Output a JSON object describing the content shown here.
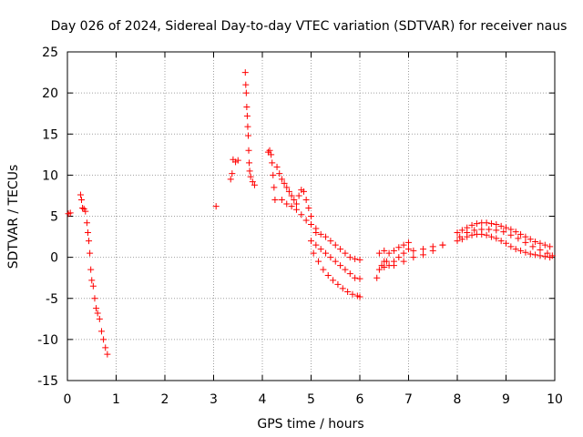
{
  "chart_data": {
    "type": "scatter",
    "title": "Day 026 of 2024, Sidereal Day-to-day VTEC variation (SDTVAR) for receiver naus",
    "xlabel": "GPS time / hours",
    "ylabel": "SDTVAR / TECUs",
    "xlim": [
      0,
      10
    ],
    "ylim": [
      -15,
      25
    ],
    "xticks": [
      0,
      1,
      2,
      3,
      4,
      5,
      6,
      7,
      8,
      9,
      10
    ],
    "yticks": [
      -15,
      -10,
      -5,
      0,
      5,
      10,
      15,
      20,
      25
    ],
    "grid": true,
    "marker": "+",
    "color": "#ff0000",
    "series": [
      {
        "name": "SDTVAR",
        "points": [
          [
            0.02,
            5.3
          ],
          [
            0.06,
            5.4
          ],
          [
            0.27,
            7.6
          ],
          [
            0.29,
            7.0
          ],
          [
            0.31,
            6.0
          ],
          [
            0.34,
            5.9
          ],
          [
            0.37,
            5.6
          ],
          [
            0.4,
            4.2
          ],
          [
            0.42,
            3.0
          ],
          [
            0.44,
            2.0
          ],
          [
            0.46,
            0.5
          ],
          [
            0.48,
            -1.5
          ],
          [
            0.5,
            -2.8
          ],
          [
            0.53,
            -3.5
          ],
          [
            0.56,
            -5.0
          ],
          [
            0.59,
            -6.2
          ],
          [
            0.62,
            -6.8
          ],
          [
            0.66,
            -7.5
          ],
          [
            0.7,
            -9.0
          ],
          [
            0.74,
            -10.0
          ],
          [
            0.78,
            -11.0
          ],
          [
            0.82,
            -11.8
          ],
          [
            3.05,
            6.2
          ],
          [
            3.35,
            9.5
          ],
          [
            3.38,
            10.2
          ],
          [
            3.4,
            11.9
          ],
          [
            3.45,
            11.6
          ],
          [
            3.5,
            11.8
          ],
          [
            3.65,
            22.5
          ],
          [
            3.66,
            21.0
          ],
          [
            3.67,
            20.0
          ],
          [
            3.68,
            18.3
          ],
          [
            3.69,
            17.2
          ],
          [
            3.7,
            15.9
          ],
          [
            3.71,
            14.8
          ],
          [
            3.72,
            13.0
          ],
          [
            3.73,
            11.5
          ],
          [
            3.74,
            10.5
          ],
          [
            3.76,
            9.8
          ],
          [
            3.8,
            9.2
          ],
          [
            3.84,
            8.8
          ],
          [
            4.12,
            12.8
          ],
          [
            4.15,
            13.0
          ],
          [
            4.18,
            12.5
          ],
          [
            4.2,
            11.5
          ],
          [
            4.22,
            10.0
          ],
          [
            4.24,
            8.5
          ],
          [
            4.26,
            7.0
          ],
          [
            4.3,
            11.0
          ],
          [
            4.35,
            10.2
          ],
          [
            4.4,
            9.5
          ],
          [
            4.45,
            9.0
          ],
          [
            4.5,
            8.5
          ],
          [
            4.55,
            8.0
          ],
          [
            4.6,
            7.5
          ],
          [
            4.65,
            7.0
          ],
          [
            4.7,
            6.5
          ],
          [
            4.75,
            7.5
          ],
          [
            4.8,
            8.2
          ],
          [
            4.85,
            8.0
          ],
          [
            4.9,
            7.0
          ],
          [
            4.95,
            6.0
          ],
          [
            5.0,
            5.0
          ],
          [
            4.4,
            7.0
          ],
          [
            4.5,
            6.5
          ],
          [
            4.6,
            6.2
          ],
          [
            4.7,
            5.8
          ],
          [
            4.8,
            5.2
          ],
          [
            4.9,
            4.5
          ],
          [
            5.0,
            4.0
          ],
          [
            5.1,
            3.5
          ],
          [
            5.1,
            3.0
          ],
          [
            5.2,
            2.8
          ],
          [
            5.3,
            2.5
          ],
          [
            5.4,
            2.0
          ],
          [
            5.5,
            1.5
          ],
          [
            5.6,
            1.0
          ],
          [
            5.7,
            0.5
          ],
          [
            5.8,
            0.0
          ],
          [
            5.9,
            -0.2
          ],
          [
            6.0,
            -0.3
          ],
          [
            5.0,
            2.0
          ],
          [
            5.1,
            1.5
          ],
          [
            5.2,
            1.0
          ],
          [
            5.3,
            0.5
          ],
          [
            5.4,
            0.0
          ],
          [
            5.5,
            -0.5
          ],
          [
            5.6,
            -1.0
          ],
          [
            5.7,
            -1.5
          ],
          [
            5.8,
            -2.0
          ],
          [
            5.9,
            -2.5
          ],
          [
            6.0,
            -2.6
          ],
          [
            5.05,
            0.5
          ],
          [
            5.15,
            -0.5
          ],
          [
            5.25,
            -1.5
          ],
          [
            5.35,
            -2.2
          ],
          [
            5.45,
            -2.8
          ],
          [
            5.55,
            -3.3
          ],
          [
            5.65,
            -3.8
          ],
          [
            5.75,
            -4.2
          ],
          [
            5.85,
            -4.5
          ],
          [
            5.95,
            -4.7
          ],
          [
            6.0,
            -4.8
          ],
          [
            6.35,
            -2.5
          ],
          [
            6.4,
            -1.5
          ],
          [
            6.45,
            -1.0
          ],
          [
            6.5,
            -0.5
          ],
          [
            6.55,
            -0.5
          ],
          [
            6.6,
            -1.0
          ],
          [
            6.7,
            -0.5
          ],
          [
            6.8,
            0.0
          ],
          [
            6.9,
            0.5
          ],
          [
            7.0,
            1.0
          ],
          [
            6.4,
            0.5
          ],
          [
            6.5,
            0.8
          ],
          [
            6.6,
            0.5
          ],
          [
            6.7,
            0.8
          ],
          [
            6.8,
            1.2
          ],
          [
            6.9,
            1.5
          ],
          [
            7.0,
            1.8
          ],
          [
            6.5,
            -1.2
          ],
          [
            6.7,
            -1.0
          ],
          [
            6.9,
            -0.5
          ],
          [
            7.1,
            0.0
          ],
          [
            7.3,
            0.3
          ],
          [
            7.5,
            0.8
          ],
          [
            7.7,
            1.5
          ],
          [
            7.1,
            0.8
          ],
          [
            7.3,
            1.0
          ],
          [
            7.5,
            1.3
          ],
          [
            7.7,
            1.5
          ],
          [
            8.0,
            2.0
          ],
          [
            8.1,
            2.2
          ],
          [
            8.2,
            2.5
          ],
          [
            8.3,
            2.7
          ],
          [
            8.4,
            2.8
          ],
          [
            8.5,
            2.8
          ],
          [
            8.6,
            2.7
          ],
          [
            8.7,
            2.5
          ],
          [
            8.8,
            2.3
          ],
          [
            8.9,
            2.0
          ],
          [
            9.0,
            1.7
          ],
          [
            9.1,
            1.3
          ],
          [
            9.2,
            1.0
          ],
          [
            9.3,
            0.8
          ],
          [
            9.4,
            0.6
          ],
          [
            9.5,
            0.4
          ],
          [
            9.6,
            0.3
          ],
          [
            9.7,
            0.2
          ],
          [
            9.8,
            0.1
          ],
          [
            9.9,
            0.0
          ],
          [
            8.0,
            3.0
          ],
          [
            8.1,
            3.3
          ],
          [
            8.2,
            3.6
          ],
          [
            8.3,
            3.9
          ],
          [
            8.4,
            4.1
          ],
          [
            8.5,
            4.2
          ],
          [
            8.6,
            4.2
          ],
          [
            8.7,
            4.1
          ],
          [
            8.8,
            4.0
          ],
          [
            8.9,
            3.8
          ],
          [
            9.0,
            3.6
          ],
          [
            9.1,
            3.4
          ],
          [
            9.2,
            3.1
          ],
          [
            9.3,
            2.8
          ],
          [
            9.4,
            2.5
          ],
          [
            9.5,
            2.2
          ],
          [
            9.6,
            1.9
          ],
          [
            9.7,
            1.7
          ],
          [
            9.8,
            1.5
          ],
          [
            9.9,
            1.3
          ],
          [
            8.05,
            2.5
          ],
          [
            8.2,
            3.0
          ],
          [
            8.35,
            3.3
          ],
          [
            8.5,
            3.4
          ],
          [
            8.65,
            3.4
          ],
          [
            8.8,
            3.3
          ],
          [
            8.95,
            3.1
          ],
          [
            9.1,
            2.7
          ],
          [
            9.25,
            2.3
          ],
          [
            9.4,
            1.8
          ],
          [
            9.55,
            1.3
          ],
          [
            9.7,
            0.9
          ],
          [
            9.85,
            0.5
          ],
          [
            9.95,
            0.2
          ]
        ]
      }
    ]
  }
}
